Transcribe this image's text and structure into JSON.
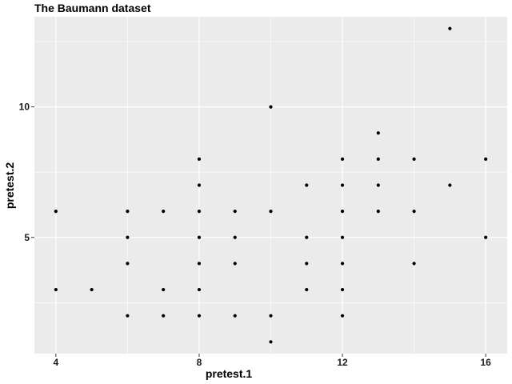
{
  "chart_data": {
    "type": "scatter",
    "title": "The Baumann dataset",
    "xlabel": "pretest.1",
    "ylabel": "pretest.2",
    "xlim": [
      3.4,
      16.6
    ],
    "ylim": [
      0.55,
      13.45
    ],
    "x_ticks": [
      4,
      8,
      12,
      16
    ],
    "y_ticks": [
      5,
      10
    ],
    "x_tick_labels": [
      "4",
      "8",
      "12",
      "16"
    ],
    "y_tick_labels": [
      "5",
      "10"
    ],
    "grid": true,
    "panel_color": "#ebebeb",
    "grid_color": "#ffffff",
    "point_color": "#000000",
    "points": [
      {
        "x": 4,
        "y": 6
      },
      {
        "x": 4,
        "y": 3
      },
      {
        "x": 5,
        "y": 3
      },
      {
        "x": 6,
        "y": 6
      },
      {
        "x": 6,
        "y": 5
      },
      {
        "x": 6,
        "y": 4
      },
      {
        "x": 6,
        "y": 2
      },
      {
        "x": 7,
        "y": 6
      },
      {
        "x": 7,
        "y": 3
      },
      {
        "x": 7,
        "y": 2
      },
      {
        "x": 8,
        "y": 8
      },
      {
        "x": 8,
        "y": 7
      },
      {
        "x": 8,
        "y": 6
      },
      {
        "x": 8,
        "y": 5
      },
      {
        "x": 8,
        "y": 4
      },
      {
        "x": 8,
        "y": 3
      },
      {
        "x": 8,
        "y": 2
      },
      {
        "x": 9,
        "y": 6
      },
      {
        "x": 9,
        "y": 5
      },
      {
        "x": 9,
        "y": 4
      },
      {
        "x": 9,
        "y": 2
      },
      {
        "x": 10,
        "y": 10
      },
      {
        "x": 10,
        "y": 6
      },
      {
        "x": 10,
        "y": 2
      },
      {
        "x": 10,
        "y": 1
      },
      {
        "x": 11,
        "y": 7
      },
      {
        "x": 11,
        "y": 5
      },
      {
        "x": 11,
        "y": 4
      },
      {
        "x": 11,
        "y": 3
      },
      {
        "x": 12,
        "y": 8
      },
      {
        "x": 12,
        "y": 7
      },
      {
        "x": 12,
        "y": 6
      },
      {
        "x": 12,
        "y": 5
      },
      {
        "x": 12,
        "y": 4
      },
      {
        "x": 12,
        "y": 3
      },
      {
        "x": 12,
        "y": 2
      },
      {
        "x": 13,
        "y": 9
      },
      {
        "x": 13,
        "y": 8
      },
      {
        "x": 13,
        "y": 7
      },
      {
        "x": 13,
        "y": 6
      },
      {
        "x": 14,
        "y": 8
      },
      {
        "x": 14,
        "y": 6
      },
      {
        "x": 14,
        "y": 4
      },
      {
        "x": 15,
        "y": 13
      },
      {
        "x": 15,
        "y": 7
      },
      {
        "x": 16,
        "y": 8
      },
      {
        "x": 16,
        "y": 5
      }
    ]
  }
}
